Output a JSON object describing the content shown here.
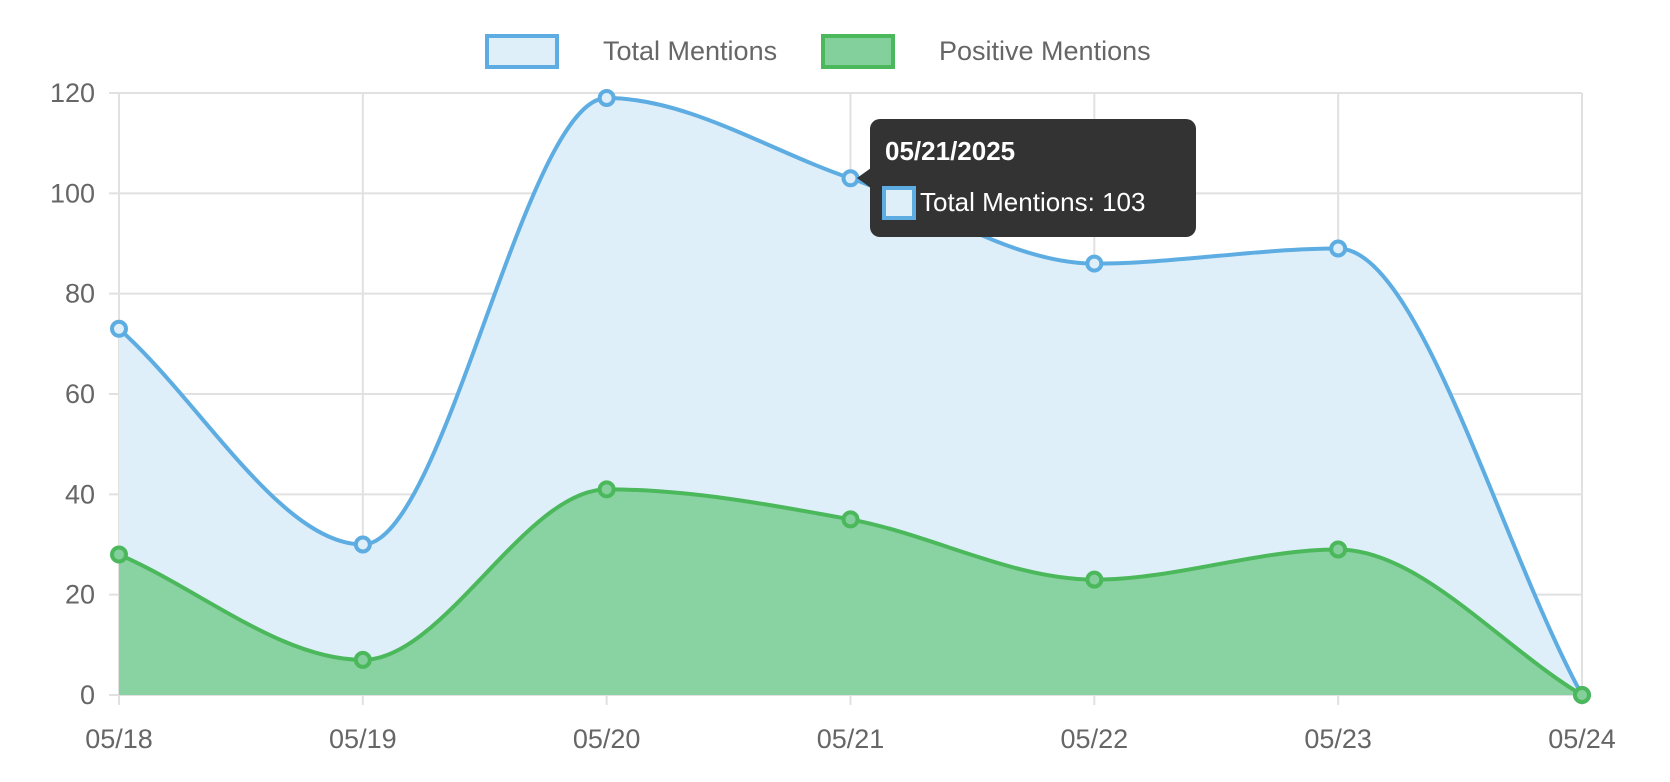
{
  "chart_data": {
    "type": "area",
    "categories": [
      "05/18",
      "05/19",
      "05/20",
      "05/21",
      "05/22",
      "05/23",
      "05/24"
    ],
    "series": [
      {
        "name": "Total Mentions",
        "values": [
          73,
          30,
          119,
          103,
          86,
          89,
          0
        ],
        "color": "#5DADE2",
        "fill": "#DFEFFA"
      },
      {
        "name": "Positive Mentions",
        "values": [
          28,
          7,
          41,
          35,
          23,
          29,
          0
        ],
        "color": "#4CB85C",
        "fill": "#84D09C"
      }
    ],
    "ylim": [
      0,
      120
    ],
    "yticks": [
      0,
      20,
      40,
      60,
      80,
      100,
      120
    ],
    "grid": true,
    "legend": "top-center",
    "tooltip": {
      "title": "05/21/2025",
      "label": "Total Mentions: 103",
      "series_index": 0,
      "point_index": 3
    }
  }
}
